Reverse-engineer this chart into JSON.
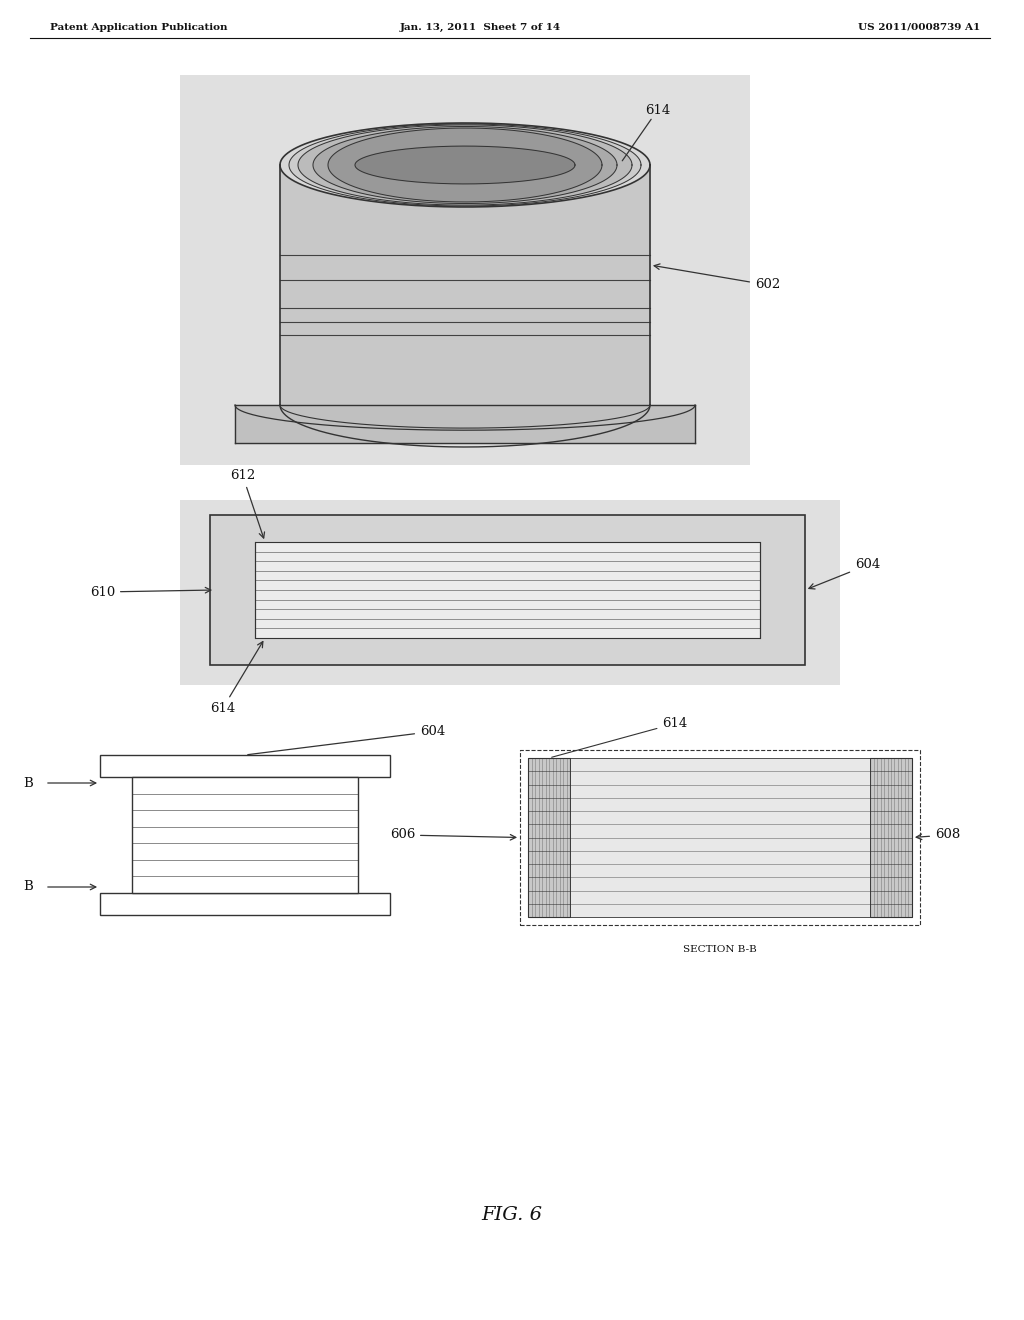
{
  "bg_color": "#ffffff",
  "header_left": "Patent Application Publication",
  "header_center": "Jan. 13, 2011  Sheet 7 of 14",
  "header_right": "US 2011/0008739 A1",
  "fig_label": "FIG. 6",
  "line_color": "#333333",
  "text_color": "#111111",
  "box_color": "#e2e2e2",
  "dark_fill": "#c8c8c8",
  "light_fill": "#eeeeee"
}
